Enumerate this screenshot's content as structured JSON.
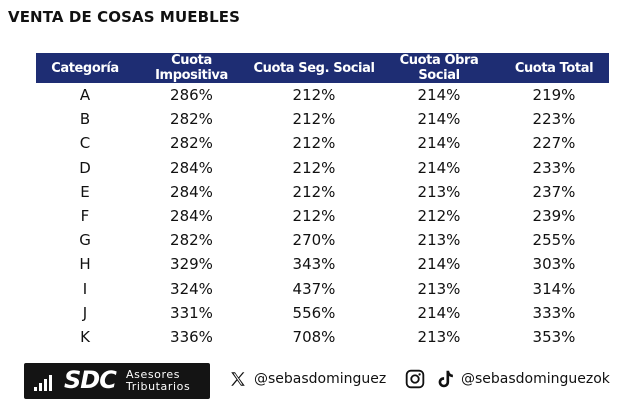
{
  "title": "VENTA DE COSAS MUEBLES",
  "table": {
    "headers": [
      "Categoría",
      "Cuota Impositiva",
      "Cuota Seg. Social",
      "Cuota Obra Social",
      "Cuota Total"
    ],
    "rows": [
      [
        "A",
        "286%",
        "212%",
        "214%",
        "219%"
      ],
      [
        "B",
        "282%",
        "212%",
        "214%",
        "223%"
      ],
      [
        "C",
        "282%",
        "212%",
        "214%",
        "227%"
      ],
      [
        "D",
        "284%",
        "212%",
        "214%",
        "233%"
      ],
      [
        "E",
        "284%",
        "212%",
        "213%",
        "237%"
      ],
      [
        "F",
        "284%",
        "212%",
        "212%",
        "239%"
      ],
      [
        "G",
        "282%",
        "270%",
        "213%",
        "255%"
      ],
      [
        "H",
        "329%",
        "343%",
        "214%",
        "303%"
      ],
      [
        "I",
        "324%",
        "437%",
        "213%",
        "314%"
      ],
      [
        "J",
        "331%",
        "556%",
        "214%",
        "333%"
      ],
      [
        "K",
        "336%",
        "708%",
        "213%",
        "353%"
      ]
    ]
  },
  "footer": {
    "logo_mark": "SDC",
    "logo_line1": "Asesores",
    "logo_line2": "Tributarios",
    "x_handle": "@sebasdominguez",
    "ig_tiktok_handle": "@sebasdominguezok"
  },
  "colors": {
    "header_bg": "#1e2d73",
    "header_text": "#ffffff",
    "logo_bg": "#141414"
  },
  "icons": [
    "x-logo-icon",
    "instagram-icon",
    "tiktok-icon",
    "bar-chart-logo-icon"
  ]
}
